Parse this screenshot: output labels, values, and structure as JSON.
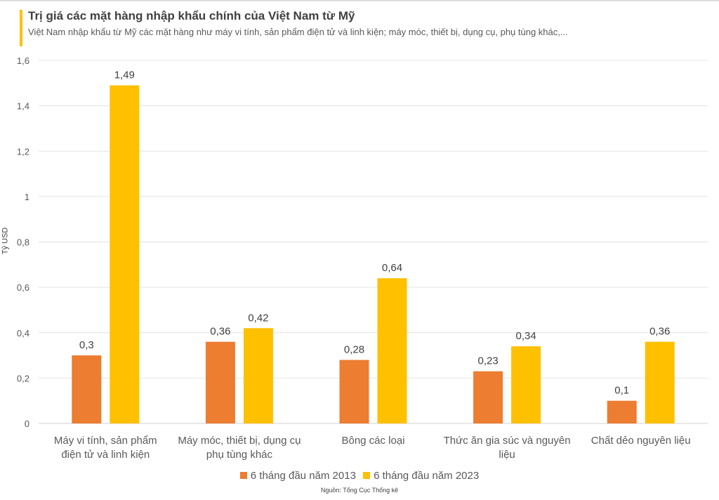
{
  "chart_data": {
    "type": "bar",
    "title": "Trị giá các mặt hàng nhập khẩu chính của Việt Nam từ Mỹ",
    "subtitle": "Việt Nam nhập khẩu từ Mỹ các mặt hàng như máy vi tính, sản phẩm điện tử và linh kiện; máy móc, thiết bị, dụng cụ, phụ tùng khác,...",
    "ylabel": "Tỷ USD",
    "xlabel": "",
    "ylim": [
      0,
      1.6
    ],
    "yticks": [
      "0",
      "0,2",
      "0,4",
      "0,6",
      "0,8",
      "1",
      "1,2",
      "1,4",
      "1,6"
    ],
    "grid": true,
    "legend_position": "bottom",
    "categories": [
      [
        "Máy vi tính, sản phẩm",
        "điện tử và linh kiện"
      ],
      [
        "Máy móc, thiết bị, dụng cụ",
        "phụ tùng khác"
      ],
      [
        "Bông các loại"
      ],
      [
        "Thức ăn gia súc và nguyên",
        "liệu"
      ],
      [
        "Chất dẻo nguyên liệu"
      ]
    ],
    "series": [
      {
        "name": "6 tháng đầu năm 2013",
        "color": "#ED7D31",
        "values": [
          0.3,
          0.36,
          0.28,
          0.23,
          0.1
        ],
        "labels": [
          "0,3",
          "0,36",
          "0,28",
          "0,23",
          "0,1"
        ]
      },
      {
        "name": "6 tháng đầu năm 2023",
        "color": "#FFC000",
        "values": [
          1.49,
          0.42,
          0.64,
          0.34,
          0.36
        ],
        "labels": [
          "1,49",
          "0,42",
          "0,64",
          "0,34",
          "0,36"
        ]
      }
    ],
    "source": "Nguồn: Tổng Cục Thống kê"
  }
}
